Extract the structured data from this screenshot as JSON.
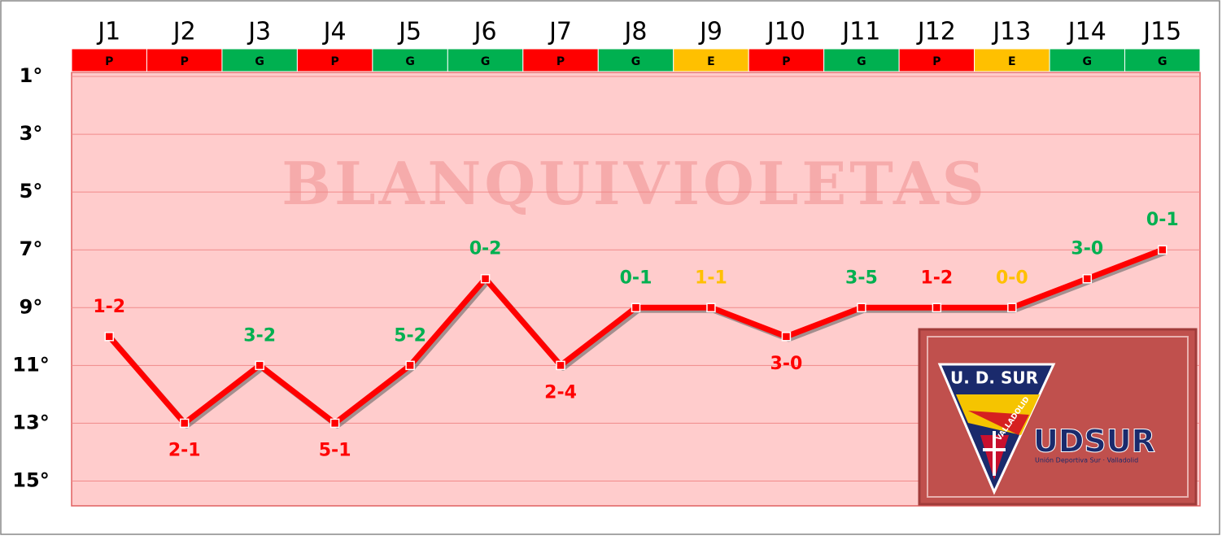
{
  "chart_data": {
    "type": "line",
    "categories": [
      "J1",
      "J2",
      "J3",
      "J4",
      "J5",
      "J6",
      "J7",
      "J8",
      "J9",
      "J10",
      "J11",
      "J12",
      "J13",
      "J14",
      "J15"
    ],
    "results": [
      "P",
      "P",
      "G",
      "P",
      "G",
      "G",
      "P",
      "G",
      "E",
      "P",
      "G",
      "P",
      "E",
      "G",
      "G"
    ],
    "result_colors": {
      "P": "#ff0000",
      "G": "#00b050",
      "E": "#ffc000"
    },
    "series": [
      {
        "color": "#ff0000",
        "values": [
          10,
          13,
          11,
          13,
          11,
          8,
          11,
          9,
          9,
          10,
          9,
          9,
          9,
          8,
          7
        ]
      }
    ],
    "scores": [
      "1-2",
      "2-1",
      "3-2",
      "5-1",
      "5-2",
      "0-2",
      "2-4",
      "0-1",
      "1-1",
      "3-0",
      "3-5",
      "1-2",
      "0-0",
      "3-0",
      "0-1"
    ],
    "score_side": [
      "above",
      "below",
      "above",
      "below",
      "above",
      "above",
      "below",
      "above",
      "above",
      "below",
      "above",
      "above",
      "above",
      "above",
      "above"
    ],
    "ylim": [
      16,
      1
    ],
    "yticks": [
      {
        "value": 1,
        "label": "1°"
      },
      {
        "value": 3,
        "label": "3°"
      },
      {
        "value": 5,
        "label": "5°"
      },
      {
        "value": 7,
        "label": "7°"
      },
      {
        "value": 9,
        "label": "9°"
      },
      {
        "value": 11,
        "label": "11°"
      },
      {
        "value": 13,
        "label": "13°"
      },
      {
        "value": 15,
        "label": "15°"
      }
    ],
    "grid": true,
    "watermark": "BLANQUIVIOLETAS",
    "logo": {
      "top": "U. D. SUR",
      "band": "VALLADOLID",
      "name": "UDSUR",
      "subtitle": "Unión Deportiva Sur · Valladolid"
    }
  }
}
